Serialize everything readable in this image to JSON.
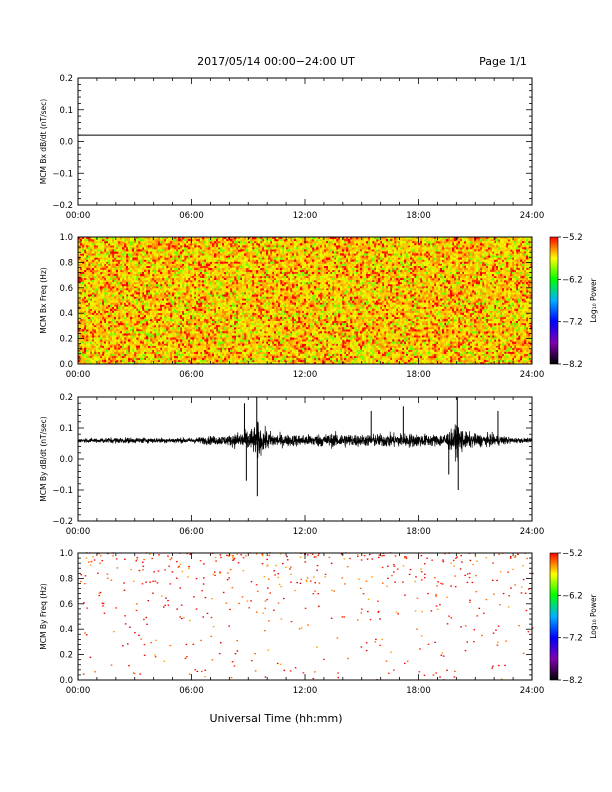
{
  "header": {
    "title": "2017/05/14  00:00−24:00 UT",
    "page": "Page 1/1"
  },
  "xlabel": "Universal Time (hh:mm)",
  "chart_data": [
    {
      "type": "line",
      "ylabel": "MCM Bx dB/dt (nT/sec)",
      "ylim": [
        -0.2,
        0.2
      ],
      "yticks": [
        -0.2,
        -0.1,
        0.0,
        0.1,
        0.2
      ],
      "ytick_labels": [
        "−0.2",
        "−0.1",
        "0.0",
        "0.1",
        "0.2"
      ],
      "xlim": [
        0,
        24
      ],
      "xticks": [
        0,
        6,
        12,
        18,
        24
      ],
      "xtick_labels": [
        "00:00",
        "06:00",
        "12:00",
        "18:00",
        "24:00"
      ],
      "series": [
        {
          "x": [
            0,
            24
          ],
          "y": [
            0.02,
            0.02
          ]
        }
      ],
      "line_color": "#000000"
    },
    {
      "type": "heatmap",
      "ylabel": "MCM Bx Freq (Hz)",
      "ylim": [
        0.0,
        1.0
      ],
      "yticks": [
        0.0,
        0.2,
        0.4,
        0.6,
        0.8,
        1.0
      ],
      "ytick_labels": [
        "0.0",
        "0.2",
        "0.4",
        "0.6",
        "0.8",
        "1.0"
      ],
      "xlim": [
        0,
        24
      ],
      "xticks": [
        0,
        6,
        12,
        18,
        24
      ],
      "xtick_labels": [
        "00:00",
        "06:00",
        "12:00",
        "18:00",
        "24:00"
      ],
      "fill": "dense noise, yellow/orange dominant with scattered red and green",
      "colorbar": {
        "label": "Log₁₀ Power",
        "ticks": [
          -5.2,
          -6.2,
          -7.2,
          -8.2
        ],
        "tick_labels": [
          "−5.2",
          "−6.2",
          "−7.2",
          "−8.2"
        ],
        "colors": [
          "#ff0000",
          "#ffff00",
          "#00ff00",
          "#00b0ff",
          "#0000ff",
          "#8000b0",
          "#000000"
        ]
      }
    },
    {
      "type": "line",
      "ylabel": "MCM By dB/dt (nT/sec)",
      "ylim": [
        -0.2,
        0.2
      ],
      "yticks": [
        -0.2,
        -0.1,
        0.0,
        0.1,
        0.2
      ],
      "ytick_labels": [
        "−0.2",
        "−0.1",
        "0.0",
        "0.1",
        "0.2"
      ],
      "xlim": [
        0,
        24
      ],
      "xticks": [
        0,
        6,
        12,
        18,
        24
      ],
      "xtick_labels": [
        "00:00",
        "06:00",
        "12:00",
        "18:00",
        "24:00"
      ],
      "baseline": 0.06,
      "envelope": {
        "x": [
          0,
          2,
          4,
          6,
          7,
          8,
          8.5,
          9,
          9.4,
          9.5,
          9.7,
          10,
          10.5,
          11,
          12,
          13,
          14,
          15,
          16,
          17,
          18,
          19,
          19.8,
          20.1,
          20.4,
          21,
          22,
          23,
          24
        ],
        "amplitude": [
          0.012,
          0.02,
          0.018,
          0.018,
          0.03,
          0.035,
          0.06,
          0.07,
          0.1,
          0.14,
          0.08,
          0.07,
          0.045,
          0.04,
          0.04,
          0.045,
          0.05,
          0.04,
          0.045,
          0.05,
          0.045,
          0.04,
          0.07,
          0.13,
          0.06,
          0.045,
          0.04,
          0.02,
          0.012
        ]
      },
      "spikes": [
        {
          "x": 9.45,
          "y": 0.2
        },
        {
          "x": 9.48,
          "y": -0.12
        },
        {
          "x": 8.8,
          "y": 0.18
        },
        {
          "x": 8.9,
          "y": -0.07
        },
        {
          "x": 20.05,
          "y": 0.2
        },
        {
          "x": 20.1,
          "y": -0.1
        },
        {
          "x": 17.2,
          "y": 0.17
        },
        {
          "x": 22.2,
          "y": 0.155
        },
        {
          "x": 15.5,
          "y": 0.155
        },
        {
          "x": 19.6,
          "y": -0.05
        }
      ],
      "line_color": "#000000"
    },
    {
      "type": "heatmap",
      "ylabel": "MCM By Freq (Hz)",
      "ylim": [
        0.0,
        1.0
      ],
      "yticks": [
        0.0,
        0.2,
        0.4,
        0.6,
        0.8,
        1.0
      ],
      "ytick_labels": [
        "0.0",
        "0.2",
        "0.4",
        "0.6",
        "0.8",
        "1.0"
      ],
      "xlim": [
        0,
        24
      ],
      "xticks": [
        0,
        6,
        12,
        18,
        24
      ],
      "xtick_labels": [
        "00:00",
        "06:00",
        "12:00",
        "18:00",
        "24:00"
      ],
      "fill": "sparse red/orange dots, denser toward 1.0 Hz, white background",
      "colorbar": {
        "label": "Log₁₀ Power",
        "ticks": [
          -5.2,
          -6.2,
          -7.2,
          -8.2
        ],
        "tick_labels": [
          "−5.2",
          "−6.2",
          "−7.2",
          "−8.2"
        ],
        "colors": [
          "#ff0000",
          "#ffff00",
          "#00ff00",
          "#00b0ff",
          "#0000ff",
          "#8000b0",
          "#000000"
        ]
      }
    }
  ]
}
